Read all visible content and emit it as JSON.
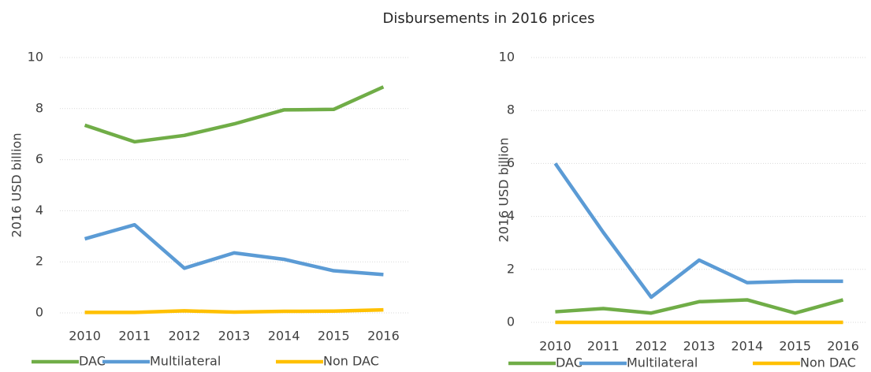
{
  "title": "Disbursements in 2016 prices",
  "chart_data": [
    {
      "type": "line",
      "y_label": "2016 USD billion",
      "categories": [
        "2010",
        "2011",
        "2012",
        "2013",
        "2014",
        "2015",
        "2016"
      ],
      "series": [
        {
          "name": "DAC",
          "color": "#70ad47",
          "values": [
            7.35,
            6.7,
            6.95,
            7.4,
            7.95,
            7.97,
            8.85
          ]
        },
        {
          "name": "Multilateral",
          "color": "#5b9bd5",
          "values": [
            2.9,
            3.45,
            1.75,
            2.35,
            2.1,
            1.65,
            1.5
          ]
        },
        {
          "name": "Non DAC",
          "color": "#ffc000",
          "values": [
            0.02,
            0.02,
            0.08,
            0.03,
            0.06,
            0.07,
            0.12
          ]
        }
      ],
      "ylim": [
        0,
        10
      ],
      "yticks": [
        0,
        2,
        4,
        6,
        8,
        10
      ],
      "grid": true,
      "legend": "bottom"
    },
    {
      "type": "line",
      "y_label": "2016 USD billion",
      "categories": [
        "2010",
        "2011",
        "2012",
        "2013",
        "2014",
        "2015",
        "2016"
      ],
      "series": [
        {
          "name": "DAC",
          "color": "#70ad47",
          "values": [
            0.4,
            0.52,
            0.35,
            0.78,
            0.85,
            0.35,
            0.85
          ]
        },
        {
          "name": "Multilateral",
          "color": "#5b9bd5",
          "values": [
            6.0,
            3.4,
            0.95,
            2.35,
            1.5,
            1.55,
            1.55
          ]
        },
        {
          "name": "Non DAC",
          "color": "#ffc000",
          "values": [
            0,
            0,
            0,
            0,
            0,
            0,
            0
          ]
        }
      ],
      "ylim": [
        0,
        10
      ],
      "yticks": [
        0,
        2,
        4,
        6,
        8,
        10
      ],
      "grid": true,
      "legend": "bottom"
    }
  ]
}
